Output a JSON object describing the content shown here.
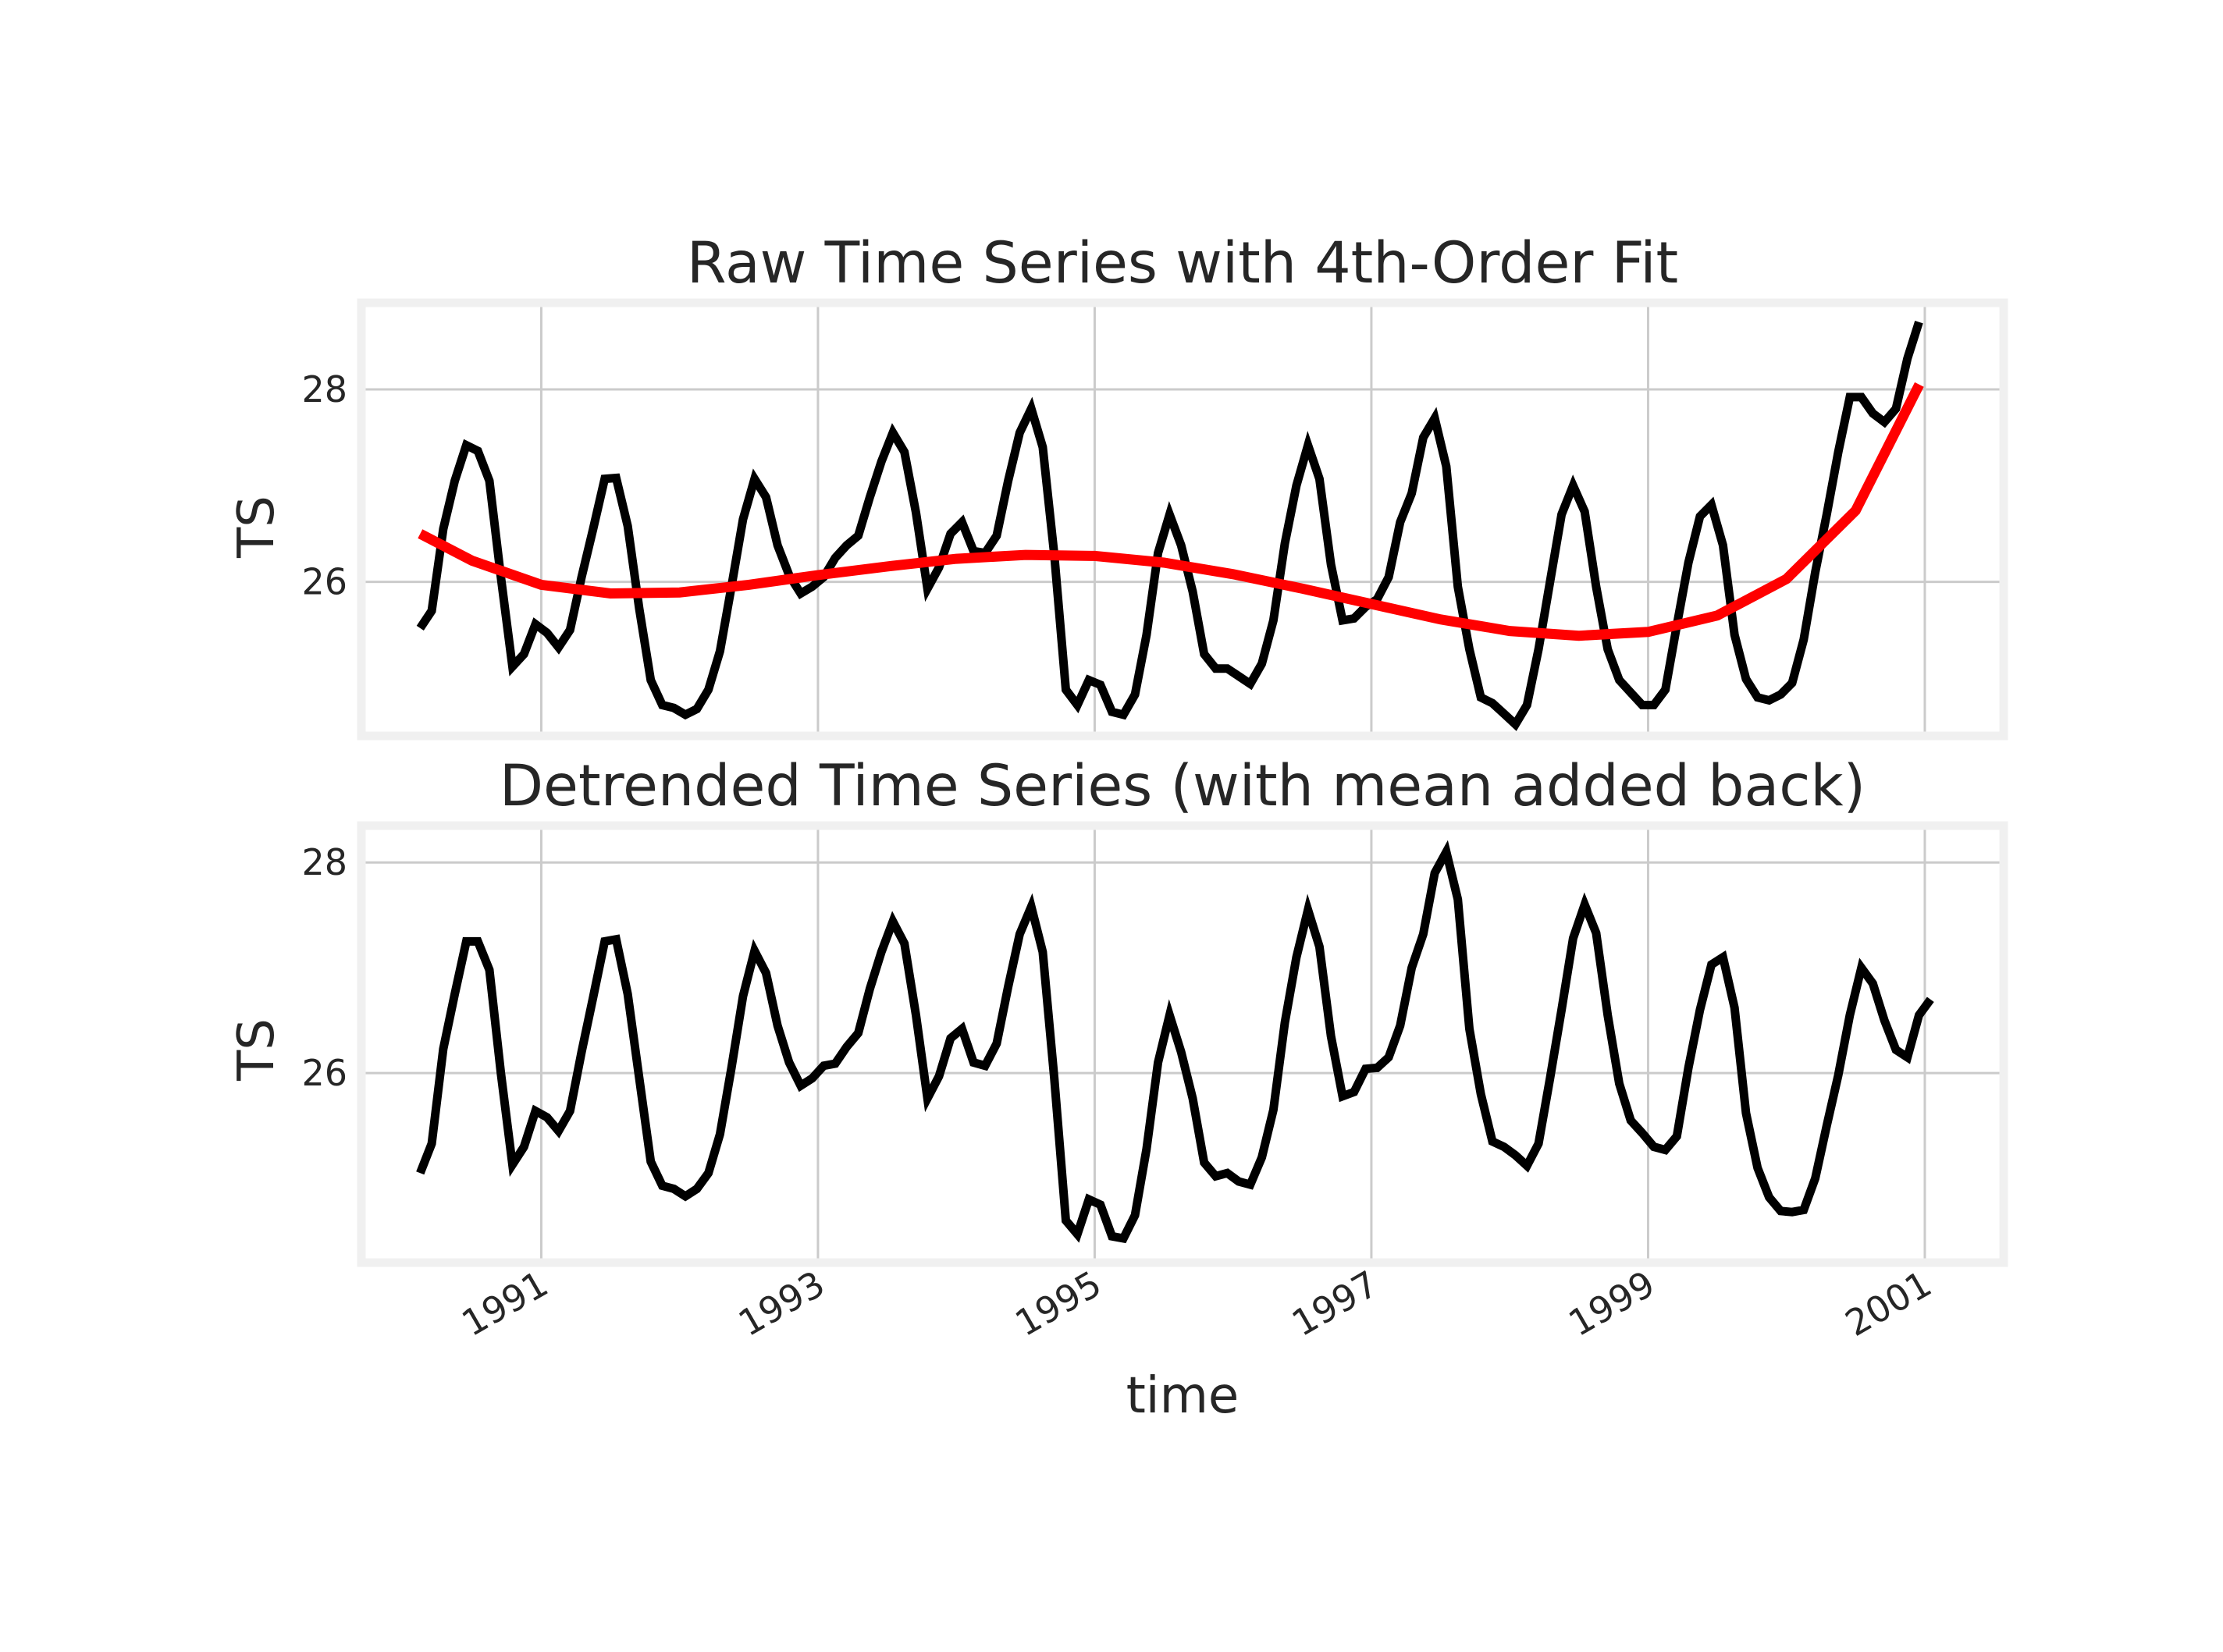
{
  "chart_data": [
    {
      "type": "line",
      "title": "Raw Time Series with 4th-Order Fit",
      "ylabel": "TS",
      "xlabel": "",
      "ylim": [
        24.4,
        28.9
      ],
      "xlim": [
        1989.7,
        2001.57
      ],
      "yticks": [
        "26",
        "28"
      ],
      "grid": true,
      "series": [
        {
          "color": "#000000",
          "x_start": 1990.125,
          "x_step": 0.08333,
          "values": [
            25.52,
            25.7,
            26.55,
            27.05,
            27.42,
            27.36,
            27.05,
            26.05,
            25.12,
            25.25,
            25.56,
            25.47,
            25.32,
            25.5,
            26.05,
            26.55,
            27.07,
            27.08,
            26.58,
            25.72,
            24.98,
            24.72,
            24.69,
            24.62,
            24.68,
            24.88,
            25.28,
            25.95,
            26.65,
            27.07,
            26.88,
            26.38,
            26.07,
            25.88,
            25.95,
            26.05,
            26.25,
            26.38,
            26.48,
            26.88,
            27.25,
            27.55,
            27.35,
            26.72,
            25.93,
            26.15,
            26.5,
            26.62,
            26.32,
            26.3,
            26.48,
            27.05,
            27.55,
            27.8,
            27.4,
            26.28,
            24.88,
            24.72,
            24.98,
            24.93,
            24.65,
            24.62,
            24.83,
            25.45,
            26.3,
            26.7,
            26.38,
            25.9,
            25.25,
            25.1,
            25.1,
            25.02,
            24.94,
            25.15,
            25.6,
            26.4,
            27.0,
            27.42,
            27.07,
            26.18,
            25.6,
            25.62,
            25.74,
            25.82,
            26.05,
            26.62,
            26.92,
            27.5,
            27.7,
            27.2,
            25.95,
            25.3,
            24.8,
            24.74,
            24.63,
            24.52,
            24.72,
            25.3,
            26.0,
            26.7,
            27.0,
            26.73,
            25.95,
            25.3,
            24.98,
            24.85,
            24.72,
            24.72,
            24.88,
            25.55,
            26.2,
            26.68,
            26.8,
            26.38,
            25.45,
            24.99,
            24.8,
            24.77,
            24.83,
            24.95,
            25.4,
            26.1,
            26.7,
            27.35,
            27.92,
            27.92,
            27.75,
            27.66,
            27.8,
            28.32,
            28.7
          ]
        },
        {
          "color": "#ff0000",
          "x": [
            1990.125,
            1990.5,
            1991.0,
            1991.5,
            1992.0,
            1992.5,
            1993.0,
            1993.5,
            1994.0,
            1994.5,
            1995.0,
            1995.5,
            1996.0,
            1996.5,
            1997.0,
            1997.5,
            1998.0,
            1998.5,
            1999.0,
            1999.5,
            2000.0,
            2000.5,
            2000.96
          ],
          "values": [
            26.5,
            26.22,
            25.97,
            25.88,
            25.89,
            25.97,
            26.07,
            26.16,
            26.24,
            26.28,
            26.27,
            26.2,
            26.08,
            25.93,
            25.77,
            25.61,
            25.49,
            25.44,
            25.48,
            25.65,
            26.03,
            26.74,
            28.05
          ]
        }
      ]
    },
    {
      "type": "line",
      "title": "Detrended Time Series (with mean added back)",
      "ylabel": "TS",
      "xlabel": "time",
      "ylim": [
        24.2,
        28.35
      ],
      "xlim": [
        1989.7,
        2001.57
      ],
      "yticks": [
        "26",
        "28"
      ],
      "xticks": [
        "1991",
        "1993",
        "1995",
        "1997",
        "1999",
        "2001"
      ],
      "xtick_values": [
        1991,
        1993,
        1995,
        1997,
        1999,
        2001
      ],
      "grid": true,
      "series": [
        {
          "color": "#000000",
          "x_start": 1990.125,
          "x_step": 0.08333,
          "values": [
            25.05,
            25.33,
            26.23,
            26.75,
            27.25,
            27.25,
            26.98,
            26.0,
            25.13,
            25.3,
            25.64,
            25.58,
            25.45,
            25.64,
            26.2,
            26.72,
            27.25,
            27.27,
            26.75,
            25.95,
            25.16,
            24.93,
            24.9,
            24.83,
            24.9,
            25.05,
            25.42,
            26.05,
            26.73,
            27.16,
            26.95,
            26.45,
            26.1,
            25.88,
            25.95,
            26.07,
            26.09,
            26.25,
            26.38,
            26.8,
            27.15,
            27.44,
            27.23,
            26.55,
            25.76,
            25.97,
            26.33,
            26.42,
            26.1,
            26.07,
            26.28,
            26.82,
            27.32,
            27.58,
            27.15,
            25.95,
            24.6,
            24.47,
            24.8,
            24.75,
            24.45,
            24.43,
            24.65,
            25.28,
            26.1,
            26.55,
            26.2,
            25.76,
            25.15,
            25.02,
            25.05,
            24.97,
            24.94,
            25.2,
            25.65,
            26.48,
            27.1,
            27.55,
            27.2,
            26.35,
            25.78,
            25.82,
            26.04,
            26.05,
            26.15,
            26.45,
            27.0,
            27.32,
            27.9,
            28.1,
            27.65,
            26.42,
            25.8,
            25.35,
            25.3,
            25.22,
            25.12,
            25.33,
            25.95,
            26.6,
            27.28,
            27.6,
            27.33,
            26.55,
            25.9,
            25.55,
            25.43,
            25.3,
            25.27,
            25.4,
            26.05,
            26.6,
            27.03,
            27.1,
            26.62,
            25.62,
            25.1,
            24.82,
            24.69,
            24.68,
            24.7,
            25.0,
            25.5,
            25.98,
            26.55,
            27.0,
            26.85,
            26.5,
            26.22,
            26.15,
            26.55,
            26.7
          ]
        }
      ]
    }
  ]
}
